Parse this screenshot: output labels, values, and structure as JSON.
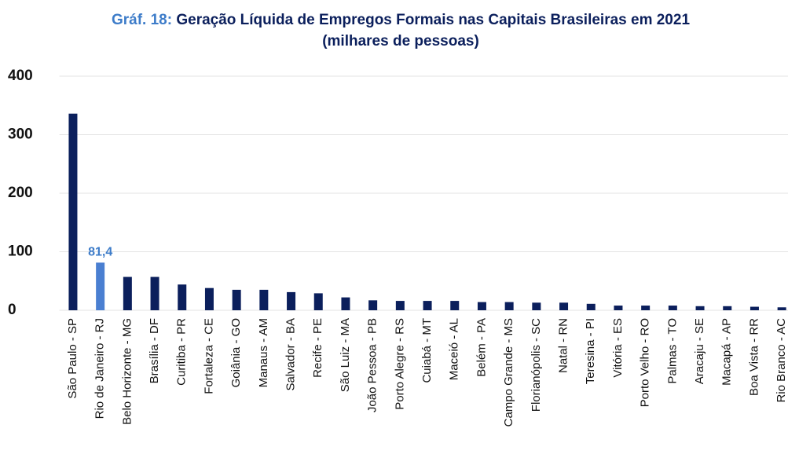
{
  "chart_data": {
    "type": "bar",
    "title_label": "Gráf. 18:",
    "title": "Geração Líquida de Empregos Formais nas Capitais Brasileiras em 2021 (milhares de pessoas)",
    "categories": [
      "São Paulo - SP",
      "Rio de Janeiro - RJ",
      "Belo Horizonte - MG",
      "Brasília - DF",
      "Curitiba - PR",
      "Fortaleza - CE",
      "Goiânia - GO",
      "Manaus - AM",
      "Salvador - BA",
      "Recife - PE",
      "São Luiz - MA",
      "João Pessoa - PB",
      "Porto Alegre - RS",
      "Cuiabá - MT",
      "Maceió - AL",
      "Belém - PA",
      "Campo Grande - MS",
      "Florianópolis - SC",
      "Natal - RN",
      "Teresina - PI",
      "Vitória - ES",
      "Porto Velho - RO",
      "Palmas - TO",
      "Aracaju - SE",
      "Macapá - AP",
      "Boa Vista - RR",
      "Rio Branco - AC"
    ],
    "values": [
      336,
      81.4,
      57,
      57,
      44,
      38,
      35,
      35,
      31,
      29,
      22,
      17,
      16,
      16,
      16,
      14,
      14,
      13,
      13,
      11,
      8,
      8,
      8,
      7,
      7,
      6,
      5
    ],
    "value_labels": [
      null,
      "81,4",
      null,
      null,
      null,
      null,
      null,
      null,
      null,
      null,
      null,
      null,
      null,
      null,
      null,
      null,
      null,
      null,
      null,
      null,
      null,
      null,
      null,
      null,
      null,
      null,
      null
    ],
    "colors": [
      "#0b1f5c",
      "#4a7fd1",
      "#0b1f5c",
      "#0b1f5c",
      "#0b1f5c",
      "#0b1f5c",
      "#0b1f5c",
      "#0b1f5c",
      "#0b1f5c",
      "#0b1f5c",
      "#0b1f5c",
      "#0b1f5c",
      "#0b1f5c",
      "#0b1f5c",
      "#0b1f5c",
      "#0b1f5c",
      "#0b1f5c",
      "#0b1f5c",
      "#0b1f5c",
      "#0b1f5c",
      "#0b1f5c",
      "#0b1f5c",
      "#0b1f5c",
      "#0b1f5c",
      "#0b1f5c",
      "#0b1f5c",
      "#0b1f5c"
    ],
    "ylim": [
      0,
      400
    ],
    "yticks": [
      0,
      100,
      200,
      300,
      400
    ],
    "grid": true
  }
}
